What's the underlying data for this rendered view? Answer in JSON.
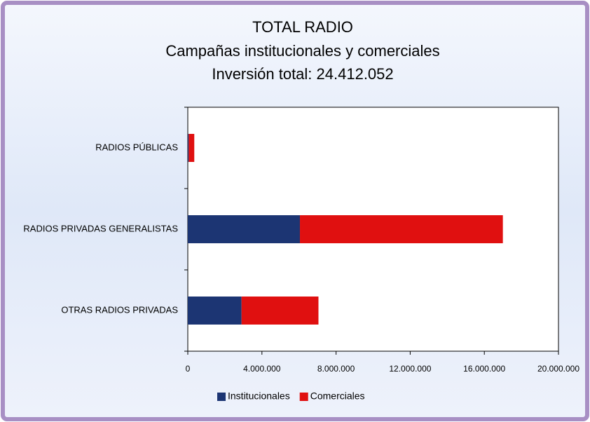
{
  "chart_data": {
    "type": "stacked-bar-horizontal",
    "title": "TOTAL RADIO",
    "subtitle": "Campañas institucionales y comerciales",
    "annotation": "Inversión total: 24.412.052",
    "categories": [
      "RADIOS PÚBLICAS",
      "RADIOS PRIVADAS GENERALISTAS",
      "OTRAS RADIOS PRIVADAS"
    ],
    "series": [
      {
        "name": "Institucionales",
        "color": "#1c3573",
        "values": [
          50000,
          6050000,
          2900000
        ]
      },
      {
        "name": "Comerciales",
        "color": "#e01010",
        "values": [
          300000,
          10950000,
          4150000
        ]
      }
    ],
    "xlim": [
      0,
      20000000
    ],
    "xticks": [
      0,
      {
        "value": 4000000,
        "label": "4.000.000"
      },
      {
        "value": 8000000,
        "label": "8.000.000"
      },
      {
        "value": 12000000,
        "label": "12.000.000"
      },
      {
        "value": 16000000,
        "label": "16.000.000"
      },
      {
        "value": 20000000,
        "label": "20.000.000"
      }
    ],
    "legend": "bottom"
  }
}
